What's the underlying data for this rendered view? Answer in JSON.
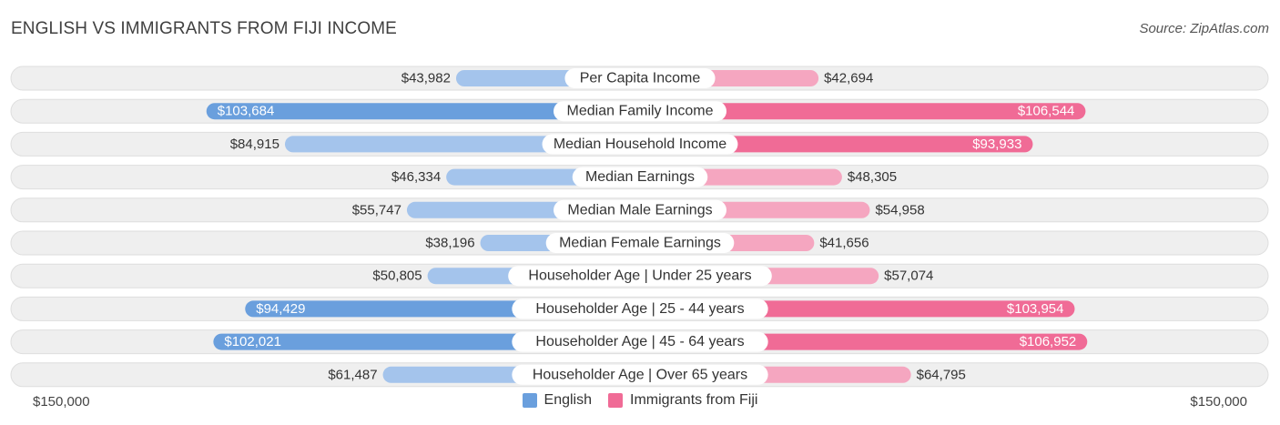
{
  "title": "ENGLISH VS IMMIGRANTS FROM FIJI INCOME",
  "source": "Source: ZipAtlas.com",
  "colors": {
    "english_strong": "#6a9fdd",
    "english_light": "#a4c4ec",
    "fiji_strong": "#f06b96",
    "fiji_light": "#f5a6c0",
    "row_bg": "#efefef",
    "row_border": "#dedede"
  },
  "legend": {
    "english": "English",
    "fiji": "Immigrants from Fiji"
  },
  "axis": {
    "left_label": "$150,000",
    "right_label": "$150,000"
  },
  "chart_data": {
    "type": "bar",
    "orientation": "horizontal-diverging",
    "title": "ENGLISH VS IMMIGRANTS FROM FIJI INCOME",
    "max": 150000,
    "categories": [
      "Per Capita Income",
      "Median Family Income",
      "Median Household Income",
      "Median Earnings",
      "Median Male Earnings",
      "Median Female Earnings",
      "Householder Age | Under 25 years",
      "Householder Age | 25 - 44 years",
      "Householder Age | 45 - 64 years",
      "Householder Age | Over 65 years"
    ],
    "series": [
      {
        "name": "English",
        "values": [
          43982,
          103684,
          84915,
          46334,
          55747,
          38196,
          50805,
          94429,
          102021,
          61487
        ],
        "labels": [
          "$43,982",
          "$103,684",
          "$84,915",
          "$46,334",
          "$55,747",
          "$38,196",
          "$50,805",
          "$94,429",
          "$102,021",
          "$61,487"
        ]
      },
      {
        "name": "Immigrants from Fiji",
        "values": [
          42694,
          106544,
          93933,
          48305,
          54958,
          41656,
          57074,
          103954,
          106952,
          64795
        ],
        "labels": [
          "$42,694",
          "$106,544",
          "$93,933",
          "$48,305",
          "$54,958",
          "$41,656",
          "$57,074",
          "$103,954",
          "$106,952",
          "$64,795"
        ]
      }
    ]
  }
}
